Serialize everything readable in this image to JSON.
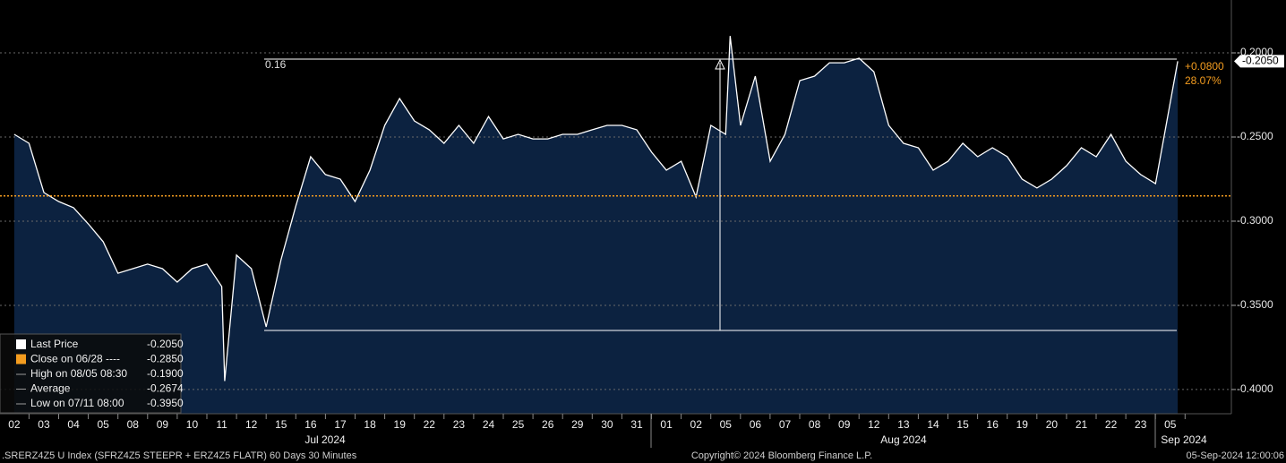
{
  "chart_data": {
    "type": "area",
    "color": "#ffffff",
    "fill": "#0c2240",
    "x": [
      0,
      0.5,
      1,
      1.5,
      2,
      2.5,
      3,
      3.5,
      4,
      4.5,
      5,
      5.5,
      6,
      6.5,
      7,
      7.1,
      7.5,
      8,
      8.5,
      9,
      9.5,
      10,
      10.5,
      11,
      11.5,
      12,
      12.5,
      13,
      13.5,
      14,
      14.5,
      15,
      15.5,
      16,
      16.5,
      17,
      17.5,
      18,
      18.5,
      19,
      19.5,
      20,
      20.5,
      21,
      21.5,
      22,
      22.5,
      23,
      23.5,
      24,
      24.15,
      24.5,
      25,
      25.5,
      26,
      26.5,
      27,
      27.5,
      28,
      28.5,
      29,
      29.5,
      30,
      30.5,
      31,
      31.5,
      32,
      32.5,
      33,
      33.5,
      34,
      34.5,
      35,
      35.5,
      36,
      36.5,
      37,
      37.5,
      38,
      38.5,
      39.25
    ],
    "values": [
      -0.2484,
      -0.2537,
      -0.283,
      -0.2883,
      -0.292,
      -0.3016,
      -0.3122,
      -0.3309,
      -0.3282,
      -0.3255,
      -0.3282,
      -0.3362,
      -0.3282,
      -0.3255,
      -0.3388,
      -0.395,
      -0.3202,
      -0.3282,
      -0.3628,
      -0.3229,
      -0.291,
      -0.2617,
      -0.2723,
      -0.275,
      -0.2883,
      -0.2697,
      -0.2431,
      -0.2271,
      -0.2404,
      -0.2457,
      -0.2537,
      -0.2431,
      -0.2537,
      -0.2378,
      -0.2511,
      -0.2484,
      -0.2511,
      -0.2511,
      -0.2484,
      -0.2484,
      -0.2457,
      -0.2431,
      -0.2431,
      -0.2457,
      -0.259,
      -0.2697,
      -0.2644,
      -0.2856,
      -0.2431,
      -0.2484,
      -0.19,
      -0.2431,
      -0.2138,
      -0.2644,
      -0.2484,
      -0.2165,
      -0.2138,
      -0.2059,
      -0.2059,
      -0.2032,
      -0.2112,
      -0.2431,
      -0.2537,
      -0.2564,
      -0.2697,
      -0.2644,
      -0.2537,
      -0.2617,
      -0.2564,
      -0.2617,
      -0.275,
      -0.2803,
      -0.275,
      -0.267,
      -0.2564,
      -0.2617,
      -0.2484,
      -0.2644,
      -0.2723,
      -0.2777,
      -0.205
    ],
    "xlim": [
      -0.48,
      41.06
    ],
    "xticks": [
      {
        "value": 0,
        "label": "02"
      },
      {
        "value": 1,
        "label": "03"
      },
      {
        "value": 2,
        "label": "04"
      },
      {
        "value": 3,
        "label": "05"
      },
      {
        "value": 4,
        "label": "08"
      },
      {
        "value": 5,
        "label": "09"
      },
      {
        "value": 6,
        "label": "10"
      },
      {
        "value": 7,
        "label": "11"
      },
      {
        "value": 8,
        "label": "12"
      },
      {
        "value": 9,
        "label": "15"
      },
      {
        "value": 10,
        "label": "16"
      },
      {
        "value": 11,
        "label": "17"
      },
      {
        "value": 12,
        "label": "18"
      },
      {
        "value": 13,
        "label": "19"
      },
      {
        "value": 14,
        "label": "22"
      },
      {
        "value": 15,
        "label": "23"
      },
      {
        "value": 16,
        "label": "24"
      },
      {
        "value": 17,
        "label": "25"
      },
      {
        "value": 18,
        "label": "26"
      },
      {
        "value": 19,
        "label": "29"
      },
      {
        "value": 20,
        "label": "30"
      },
      {
        "value": 21,
        "label": "31"
      },
      {
        "value": 22,
        "label": "01"
      },
      {
        "value": 23,
        "label": "02"
      },
      {
        "value": 24,
        "label": "05"
      },
      {
        "value": 25,
        "label": "06"
      },
      {
        "value": 26,
        "label": "07"
      },
      {
        "value": 27,
        "label": "08"
      },
      {
        "value": 28,
        "label": "09"
      },
      {
        "value": 29,
        "label": "12"
      },
      {
        "value": 30,
        "label": "13"
      },
      {
        "value": 31,
        "label": "14"
      },
      {
        "value": 32,
        "label": "15"
      },
      {
        "value": 33,
        "label": "16"
      },
      {
        "value": 34,
        "label": "19"
      },
      {
        "value": 35,
        "label": "20"
      },
      {
        "value": 36,
        "label": "21"
      },
      {
        "value": 37,
        "label": "22"
      },
      {
        "value": 38,
        "label": "23"
      },
      {
        "value": 39,
        "label": "05"
      }
    ],
    "month_labels": [
      "Jul 2024",
      "Aug 2024",
      "Sep 2024"
    ],
    "ylim": [
      -0.4144,
      -0.1686
    ],
    "yticks": [
      {
        "value": -0.2,
        "label": "-0.2000"
      },
      {
        "value": -0.25,
        "label": "-0.2500"
      },
      {
        "value": -0.3,
        "label": "-0.3000"
      },
      {
        "value": -0.35,
        "label": "-0.3500"
      },
      {
        "value": -0.4,
        "label": "-0.4000"
      }
    ],
    "grid": true,
    "legend": [
      {
        "name": "Last Price",
        "value": -0.205,
        "value_label": "-0.2050",
        "color": "#ffffff"
      },
      {
        "name": "Close on 06/28 ----",
        "value": -0.285,
        "value_label": "-0.2850",
        "color": "#f39c1f"
      },
      {
        "name": "High on 08/05 08:30",
        "value": -0.19,
        "value_label": "-0.1900",
        "color": "#9a9a9a"
      },
      {
        "name": "Average",
        "value": -0.2674,
        "value_label": "-0.2674",
        "color": "#9a9a9a"
      },
      {
        "name": "Low on 07/11 08:00",
        "value": -0.395,
        "value_label": "-0.3950",
        "color": "#9a9a9a"
      }
    ],
    "change": {
      "value": 0.08,
      "label": "+0.0800"
    },
    "change_pct": {
      "value": 28.07,
      "label": "28.07%"
    },
    "annotation": "0.16",
    "footer_left": ".SRERZ4Z5 U Index (SFRZ4Z5 STEEPR + ERZ4Z5 FLATR) 60 Days 30 Minutes",
    "footer_center": "Copyright© 2024 Bloomberg Finance L.P.",
    "footer_right": "05-Sep-2024 12:00:06"
  }
}
